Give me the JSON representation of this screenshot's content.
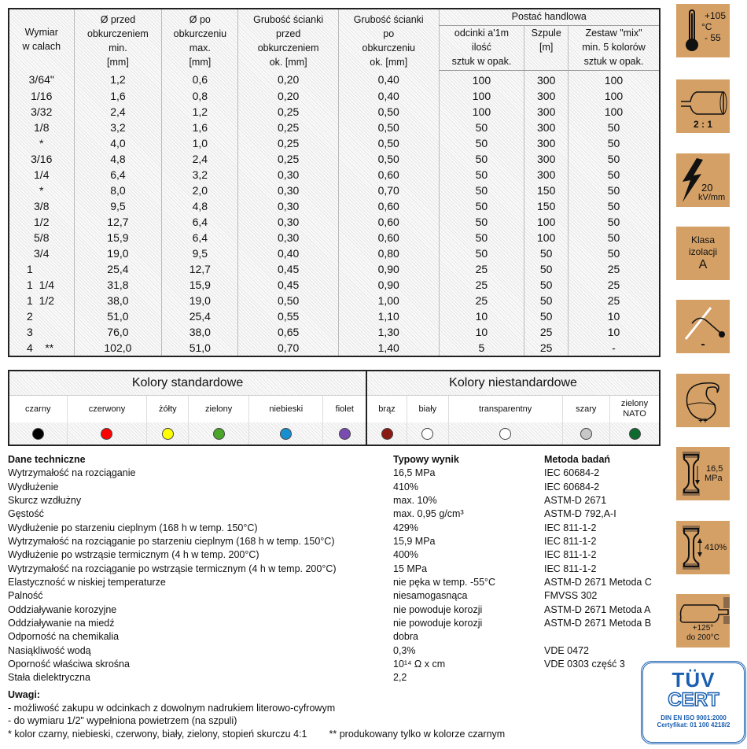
{
  "dimensions_table": {
    "headers": {
      "size": "Wymiar\nw calach",
      "d_before": "Ø przed\nobkurczeniem\nmin.\n[mm]",
      "d_after": "Ø po\nobkurczeniu\nmax.\n[mm]",
      "wall_before": "Grubość ścianki\nprzed\nobkurczeniem\nok. [mm]",
      "wall_after": "Grubość ścianki\npo\nobkurczeniu\nok. [mm]",
      "trade_form": "Postać handlowa",
      "pieces": "odcinki a'1m\nilość\nsztuk w opak.",
      "spools": "Szpule\n[m]",
      "mix": "Zestaw \"mix\"\nmin. 5 kolorów\nsztuk w opak."
    },
    "rows": [
      [
        "3/64\"",
        "1,2",
        "0,6",
        "0,20",
        "0,40",
        "100",
        "300",
        "100"
      ],
      [
        "1/16",
        "1,6",
        "0,8",
        "0,20",
        "0,40",
        "100",
        "300",
        "100"
      ],
      [
        "3/32",
        "2,4",
        "1,2",
        "0,25",
        "0,50",
        "100",
        "300",
        "100"
      ],
      [
        "1/8",
        "3,2",
        "1,6",
        "0,25",
        "0,50",
        "50",
        "300",
        "50"
      ],
      [
        "*",
        "4,0",
        "1,0",
        "0,25",
        "0,50",
        "50",
        "300",
        "50"
      ],
      [
        "3/16",
        "4,8",
        "2,4",
        "0,25",
        "0,50",
        "50",
        "300",
        "50"
      ],
      [
        "1/4",
        "6,4",
        "3,2",
        "0,30",
        "0,60",
        "50",
        "300",
        "50"
      ],
      [
        "*",
        "8,0",
        "2,0",
        "0,30",
        "0,70",
        "50",
        "150",
        "50"
      ],
      [
        "3/8",
        "9,5",
        "4,8",
        "0,30",
        "0,60",
        "50",
        "150",
        "50"
      ],
      [
        "1/2",
        "12,7",
        "6,4",
        "0,30",
        "0,60",
        "50",
        "100",
        "50"
      ],
      [
        "5/8",
        "15,9",
        "6,4",
        "0,30",
        "0,60",
        "50",
        "100",
        "50"
      ],
      [
        "3/4",
        "19,0",
        "9,5",
        "0,40",
        "0,80",
        "50",
        "50",
        "50"
      ],
      [
        "1",
        "25,4",
        "12,7",
        "0,45",
        "0,90",
        "25",
        "50",
        "25"
      ],
      [
        "1  1/4",
        "31,8",
        "15,9",
        "0,45",
        "0,90",
        "25",
        "50",
        "25"
      ],
      [
        "1  1/2",
        "38,0",
        "19,0",
        "0,50",
        "1,00",
        "25",
        "50",
        "25"
      ],
      [
        "2",
        "51,0",
        "25,4",
        "0,55",
        "1,10",
        "10",
        "50",
        "10"
      ],
      [
        "3",
        "76,0",
        "38,0",
        "0,65",
        "1,30",
        "10",
        "25",
        "10"
      ],
      [
        "4    **",
        "102,0",
        "51,0",
        "0,70",
        "1,40",
        "5",
        "25",
        "-"
      ]
    ]
  },
  "colors": {
    "standard_title": "Kolory standardowe",
    "nonstandard_title": "Kolory niestandardowe",
    "standard": [
      {
        "label": "czarny",
        "color": "#000000"
      },
      {
        "label": "czerwony",
        "color": "#ff0000"
      },
      {
        "label": "żółty",
        "color": "#ffff00"
      },
      {
        "label": "zielony",
        "color": "#4aa52a"
      },
      {
        "label": "niebieski",
        "color": "#1a8fd0"
      },
      {
        "label": "fiolet",
        "color": "#7a4bb0"
      }
    ],
    "nonstandard": [
      {
        "label": "brąz",
        "color": "#8b1a14"
      },
      {
        "label": "biały",
        "color": "#ffffff"
      },
      {
        "label": "transparentny",
        "color": "#ffffff"
      },
      {
        "label": "szary",
        "color": "#c8c8c8"
      },
      {
        "label": "zielony NATO",
        "color": "#0f6a30"
      }
    ]
  },
  "tech": {
    "headers": [
      "Dane techniczne",
      "Typowy wynik",
      "Metoda badań"
    ],
    "rows": [
      [
        "Wytrzymałość na rozciąganie",
        "16,5 MPa",
        "IEC 60684-2"
      ],
      [
        "Wydłużenie",
        "410%",
        "IEC 60684-2"
      ],
      [
        "Skurcz wzdłużny",
        "max. 10%",
        "ASTM-D 2671"
      ],
      [
        "Gęstość",
        "max. 0,95 g/cm³",
        "ASTM-D 792,A-I"
      ],
      [
        "Wydłużenie po starzeniu cieplnym (168 h w temp. 150°C)",
        "429%",
        "IEC 811-1-2"
      ],
      [
        "Wytrzymałość na rozciąganie po starzeniu cieplnym (168 h w temp. 150°C)",
        "15,9 MPa",
        "IEC 811-1-2"
      ],
      [
        "Wydłużenie po wstrząsie termicznym (4 h w temp. 200°C)",
        "400%",
        "IEC 811-1-2"
      ],
      [
        "Wytrzymałość na rozciąganie po wstrząsie termicznym (4 h w temp. 200°C)",
        "15 MPa",
        "IEC 811-1-2"
      ],
      [
        "Elastyczność w niskiej temperaturze",
        "nie pęka w temp. -55°C",
        "ASTM-D 2671 Metoda C"
      ],
      [
        "Palność",
        "niesamogasnąca",
        "FMVSS 302"
      ],
      [
        "Oddziaływanie korozyjne",
        "nie powoduje korozji",
        "ASTM-D 2671 Metoda A"
      ],
      [
        "Oddziaływanie na miedź",
        "nie powoduje korozji",
        "ASTM-D 2671 Metoda B"
      ],
      [
        "Odporność na chemikalia",
        "dobra",
        ""
      ],
      [
        "Nasiąkliwość wodą",
        "0,3%",
        "VDE 0472"
      ],
      [
        "Oporność właściwa skrośna",
        "10¹⁴ Ω x cm",
        "VDE 0303 część 3"
      ],
      [
        "Stała dielektryczna",
        "2,2",
        ""
      ]
    ]
  },
  "notes": {
    "title": "Uwagi:",
    "lines": [
      "- możliwość zakupu w odcinkach z dowolnym nadrukiem literowo-cyfrowym",
      "- do wymiaru 1/2\" wypełniona powietrzem (na szpuli)"
    ],
    "footnote_1": "* kolor czarny, niebieski, czerwony, biały, zielony, stopień skurczu 4:1",
    "footnote_2": "** produkowany tylko w kolorze czarnym"
  },
  "icons": [
    {
      "name": "thermometer-icon",
      "text": [
        "+105",
        "°C",
        "- 55"
      ]
    },
    {
      "name": "shrink-ratio-icon",
      "text": [
        "2 : 1"
      ]
    },
    {
      "name": "lightning-icon",
      "text": [
        "20",
        "kV/mm"
      ]
    },
    {
      "name": "insulation-class-icon",
      "text": [
        "Klasa",
        "izolacji",
        "A"
      ]
    },
    {
      "name": "flame-icon",
      "text": [
        "-"
      ]
    },
    {
      "name": "chemical-icon",
      "text": [
        "++"
      ]
    },
    {
      "name": "tensile-icon",
      "text": [
        "16,5",
        "MPa"
      ]
    },
    {
      "name": "elongation-icon",
      "text": [
        "410%"
      ]
    },
    {
      "name": "heat-shock-icon",
      "text": [
        "+125°",
        "do 200°C"
      ]
    }
  ],
  "cert": {
    "logo_top": "TÜV",
    "logo_main": "CERT",
    "line1": "DIN EN ISO 9001:2000",
    "line2": "Certyfikat: 01 100 4218/2",
    "color": "#1a5fb0",
    "icon_bg": "#d4a066"
  }
}
